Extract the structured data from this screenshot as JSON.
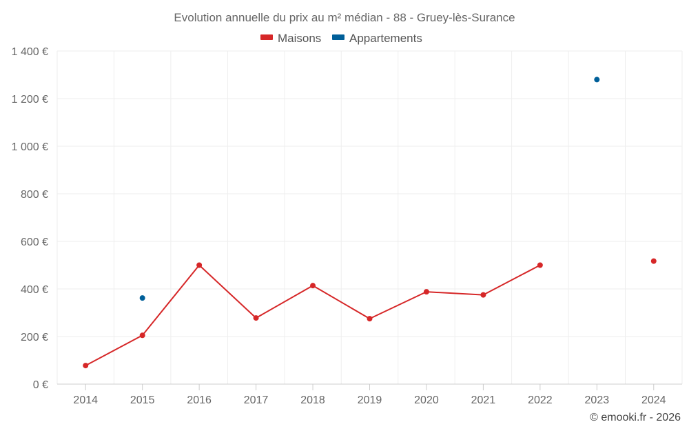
{
  "chart_data": {
    "type": "line",
    "title": "Evolution annuelle du prix au m² médian - 88 - Gruey-lès-Surance",
    "x": [
      2014,
      2015,
      2016,
      2017,
      2018,
      2019,
      2020,
      2021,
      2022,
      2023,
      2024
    ],
    "x_tick_labels": [
      "2014",
      "2015",
      "2016",
      "2017",
      "2018",
      "2019",
      "2020",
      "2021",
      "2022",
      "2023",
      "2024"
    ],
    "ylim": [
      0,
      1400
    ],
    "y_ticks": [
      0,
      200,
      400,
      600,
      800,
      1000,
      1200,
      1400
    ],
    "y_tick_labels": [
      "0 €",
      "200 €",
      "400 €",
      "600 €",
      "800 €",
      "1 000 €",
      "1 200 €",
      "1 400 €"
    ],
    "series": [
      {
        "name": "Maisons",
        "color": "#d62728",
        "values": [
          78,
          205,
          500,
          278,
          414,
          275,
          388,
          375,
          500,
          null,
          517
        ]
      },
      {
        "name": "Appartements",
        "color": "#005f99",
        "values": [
          null,
          362,
          null,
          null,
          null,
          null,
          null,
          null,
          null,
          1280,
          null
        ]
      }
    ],
    "legend_position": "top-center",
    "grid": true
  },
  "credit": "© emooki.fr - 2026"
}
